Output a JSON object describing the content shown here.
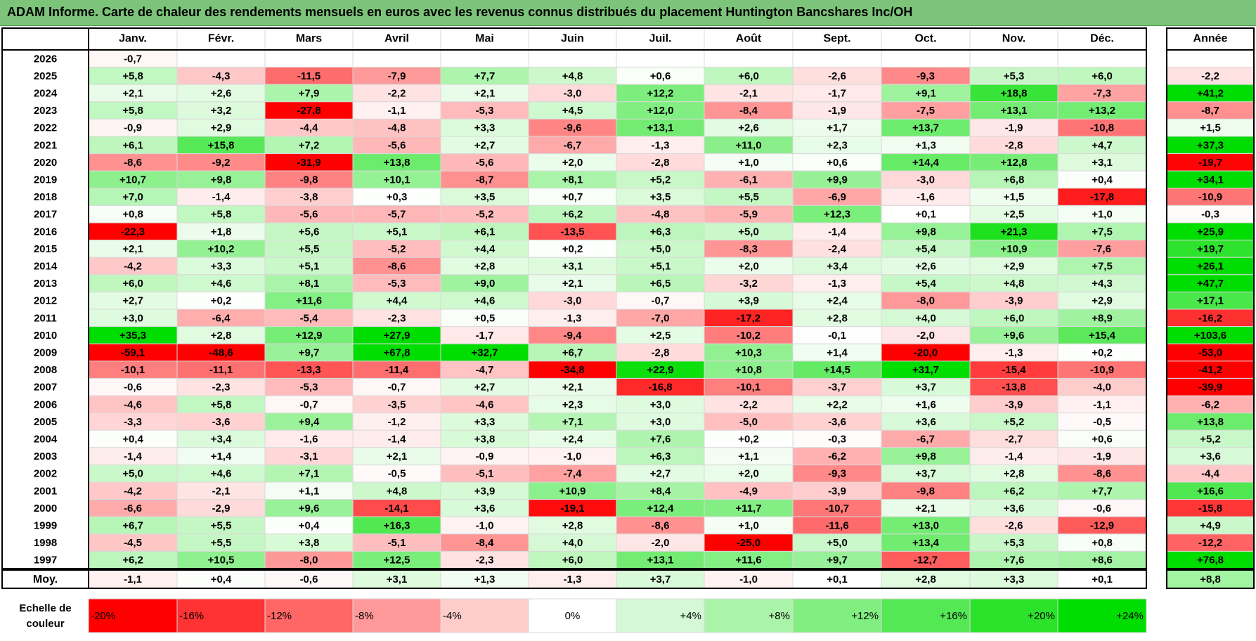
{
  "title": "ADAM Informe. Carte de chaleur des rendements mensuels en euros avec les revenus connus distribués du placement Huntington Bancshares Inc/OH",
  "colors": {
    "title_bg": "#7cc47a",
    "neg_max": "#ff0000",
    "pos_max": "#00dd00",
    "neutral": "#ffffff"
  },
  "chart_data": {
    "type": "heatmap",
    "title": "ADAM Informe. Carte de chaleur des rendements mensuels en euros avec les revenus connus distribués du placement Huntington Bancshares Inc/OH",
    "months": [
      "Janv.",
      "Févr.",
      "Mars",
      "Avril",
      "Mai",
      "Juin",
      "Juil.",
      "Août",
      "Sept.",
      "Oct.",
      "Nov.",
      "Déc."
    ],
    "year_header": "Année",
    "rows": [
      {
        "year": "2026",
        "values": [
          "-0,7",
          "",
          "",
          "",
          "",
          "",
          "",
          "",
          "",
          "",
          "",
          ""
        ],
        "annual": ""
      },
      {
        "year": "2025",
        "values": [
          "+5,8",
          "-4,3",
          "-11,5",
          "-7,9",
          "+7,7",
          "+4,8",
          "+0,6",
          "+6,0",
          "-2,6",
          "-9,3",
          "+5,3",
          "+6,0"
        ],
        "annual": "-2,2"
      },
      {
        "year": "2024",
        "values": [
          "+2,1",
          "+2,6",
          "+7,9",
          "-2,2",
          "+2,1",
          "-3,0",
          "+12,2",
          "-2,1",
          "-1,7",
          "+9,1",
          "+18,8",
          "-7,3"
        ],
        "annual": "+41,2"
      },
      {
        "year": "2023",
        "values": [
          "+5,8",
          "+3,2",
          "-27,8",
          "-1,1",
          "-5,3",
          "+4,5",
          "+12,0",
          "-8,4",
          "-1,9",
          "-7,5",
          "+13,1",
          "+13,2"
        ],
        "annual": "-8,7"
      },
      {
        "year": "2022",
        "values": [
          "-0,9",
          "+2,9",
          "-4,4",
          "-4,8",
          "+3,3",
          "-9,6",
          "+13,1",
          "+2,6",
          "+1,7",
          "+13,7",
          "-1,9",
          "-10,8"
        ],
        "annual": "+1,5"
      },
      {
        "year": "2021",
        "values": [
          "+6,1",
          "+15,8",
          "+7,2",
          "-5,6",
          "+2,7",
          "-6,7",
          "-1,3",
          "+11,0",
          "+2,3",
          "+1,3",
          "-2,8",
          "+4,7"
        ],
        "annual": "+37,3"
      },
      {
        "year": "2020",
        "values": [
          "-8,6",
          "-9,2",
          "-31,9",
          "+13,8",
          "-5,6",
          "+2,0",
          "-2,8",
          "+1,0",
          "+0,6",
          "+14,4",
          "+12,8",
          "+3,1"
        ],
        "annual": "-19,7"
      },
      {
        "year": "2019",
        "values": [
          "+10,7",
          "+9,8",
          "-9,8",
          "+10,1",
          "-8,7",
          "+8,1",
          "+5,2",
          "-6,1",
          "+9,9",
          "-3,0",
          "+6,8",
          "+0,4"
        ],
        "annual": "+34,1"
      },
      {
        "year": "2018",
        "values": [
          "+7,0",
          "-1,4",
          "-3,8",
          "+0,3",
          "+3,5",
          "+0,7",
          "+3,5",
          "+5,5",
          "-6,9",
          "-1,6",
          "+1,5",
          "-17,8"
        ],
        "annual": "-10,9"
      },
      {
        "year": "2017",
        "values": [
          "+0,8",
          "+5,8",
          "-5,6",
          "-5,7",
          "-5,2",
          "+6,2",
          "-4,8",
          "-5,9",
          "+12,3",
          "+0,1",
          "+2,5",
          "+1,0"
        ],
        "annual": "-0,3"
      },
      {
        "year": "2016",
        "values": [
          "-22,3",
          "+1,8",
          "+5,6",
          "+5,1",
          "+6,1",
          "-13,5",
          "+6,3",
          "+5,0",
          "-1,4",
          "+9,8",
          "+21,3",
          "+7,5"
        ],
        "annual": "+25,9"
      },
      {
        "year": "2015",
        "values": [
          "+2,1",
          "+10,2",
          "+5,5",
          "-5,2",
          "+4,4",
          "+0,2",
          "+5,0",
          "-8,3",
          "-2,4",
          "+5,4",
          "+10,9",
          "-7,6"
        ],
        "annual": "+19,7"
      },
      {
        "year": "2014",
        "values": [
          "-4,2",
          "+3,3",
          "+5,1",
          "-8,6",
          "+2,8",
          "+3,1",
          "+5,1",
          "+2,0",
          "+3,4",
          "+2,6",
          "+2,9",
          "+7,5"
        ],
        "annual": "+26,1"
      },
      {
        "year": "2013",
        "values": [
          "+6,0",
          "+4,6",
          "+8,1",
          "-5,3",
          "+9,0",
          "+2,1",
          "+6,5",
          "-3,2",
          "-1,3",
          "+5,4",
          "+4,8",
          "+4,3"
        ],
        "annual": "+47,7"
      },
      {
        "year": "2012",
        "values": [
          "+2,7",
          "+0,2",
          "+11,6",
          "+4,4",
          "+4,6",
          "-3,0",
          "-0,7",
          "+3,9",
          "+2,4",
          "-8,0",
          "-3,9",
          "+2,9"
        ],
        "annual": "+17,1"
      },
      {
        "year": "2011",
        "values": [
          "+3,0",
          "-6,4",
          "-5,4",
          "-2,3",
          "+0,5",
          "-1,3",
          "-7,0",
          "-17,2",
          "+2,8",
          "+4,0",
          "+6,0",
          "+8,9"
        ],
        "annual": "-16,2"
      },
      {
        "year": "2010",
        "values": [
          "+35,3",
          "+2,8",
          "+12,9",
          "+27,9",
          "-1,7",
          "-9,4",
          "+2,5",
          "-10,2",
          "-0,1",
          "-2,0",
          "+9,6",
          "+15,4"
        ],
        "annual": "+103,6"
      },
      {
        "year": "2009",
        "values": [
          "-59,1",
          "-48,6",
          "+9,7",
          "+67,8",
          "+32,7",
          "+6,7",
          "-2,8",
          "+10,3",
          "+1,4",
          "-20,0",
          "-1,3",
          "+0,2"
        ],
        "annual": "-53,0"
      },
      {
        "year": "2008",
        "values": [
          "-10,1",
          "-11,1",
          "-13,3",
          "-11,4",
          "-4,7",
          "-34,8",
          "+22,9",
          "+10,8",
          "+14,5",
          "+31,7",
          "-15,4",
          "-10,9"
        ],
        "annual": "-41,2"
      },
      {
        "year": "2007",
        "values": [
          "-0,6",
          "-2,3",
          "-5,3",
          "-0,7",
          "+2,7",
          "+2,1",
          "-16,8",
          "-10,1",
          "-3,7",
          "+3,7",
          "-13,8",
          "-4,0"
        ],
        "annual": "-39,9"
      },
      {
        "year": "2006",
        "values": [
          "-4,6",
          "+5,8",
          "-0,7",
          "-3,5",
          "-4,6",
          "+2,3",
          "+3,0",
          "-2,2",
          "+2,2",
          "+1,6",
          "-3,9",
          "-1,1"
        ],
        "annual": "-6,2"
      },
      {
        "year": "2005",
        "values": [
          "-3,3",
          "-3,6",
          "+9,4",
          "-1,2",
          "+3,3",
          "+7,1",
          "+3,0",
          "-5,0",
          "-3,6",
          "+3,6",
          "+5,2",
          "-0,5"
        ],
        "annual": "+13,8"
      },
      {
        "year": "2004",
        "values": [
          "+0,4",
          "+3,4",
          "-1,6",
          "-1,4",
          "+3,8",
          "+2,4",
          "+7,6",
          "+0,2",
          "-0,3",
          "-6,7",
          "-2,7",
          "+0,6"
        ],
        "annual": "+5,2"
      },
      {
        "year": "2003",
        "values": [
          "-1,4",
          "+1,4",
          "-3,1",
          "+2,1",
          "-0,9",
          "-1,0",
          "+6,3",
          "+1,1",
          "-6,2",
          "+9,8",
          "-1,4",
          "-1,9"
        ],
        "annual": "+3,6"
      },
      {
        "year": "2002",
        "values": [
          "+5,0",
          "+4,6",
          "+7,1",
          "-0,5",
          "-5,1",
          "-7,4",
          "+2,7",
          "+2,0",
          "-9,3",
          "+3,7",
          "+2,8",
          "-8,6"
        ],
        "annual": "-4,4"
      },
      {
        "year": "2001",
        "values": [
          "-4,2",
          "-2,1",
          "+1,1",
          "+4,8",
          "+3,9",
          "+10,9",
          "+8,4",
          "-4,9",
          "-3,9",
          "-9,8",
          "+6,2",
          "+7,7"
        ],
        "annual": "+16,6"
      },
      {
        "year": "2000",
        "values": [
          "-6,6",
          "-2,9",
          "+9,6",
          "-14,1",
          "+3,6",
          "-19,1",
          "+12,4",
          "+11,7",
          "-10,7",
          "+2,1",
          "+3,6",
          "-0,6"
        ],
        "annual": "-15,8"
      },
      {
        "year": "1999",
        "values": [
          "+6,7",
          "+5,5",
          "+0,4",
          "+16,3",
          "-1,0",
          "+2,8",
          "-8,6",
          "+1,0",
          "-11,6",
          "+13,0",
          "-2,6",
          "-12,9"
        ],
        "annual": "+4,9"
      },
      {
        "year": "1998",
        "values": [
          "-4,5",
          "+5,5",
          "+3,8",
          "-5,1",
          "-8,4",
          "+4,0",
          "-2,0",
          "-25,0",
          "+5,0",
          "+13,4",
          "+5,3",
          "+0,8"
        ],
        "annual": "-12,2"
      },
      {
        "year": "1997",
        "values": [
          "+6,2",
          "+10,5",
          "-8,0",
          "+12,5",
          "-2,3",
          "+6,0",
          "+13,1",
          "+11,6",
          "+9,7",
          "-12,7",
          "+7,6",
          "+8,6"
        ],
        "annual": "+76,8"
      }
    ],
    "average": {
      "label": "Moy.",
      "values": [
        "-1,1",
        "+0,4",
        "-0,6",
        "+3,1",
        "+1,3",
        "-1,3",
        "+3,7",
        "-1,0",
        "+0,1",
        "+2,8",
        "+3,3",
        "+0,1"
      ],
      "annual": "+8,8"
    },
    "scale": {
      "label_line1": "Echelle de",
      "label_line2": "couleur",
      "steps": [
        {
          "label": "-20%",
          "value": -20
        },
        {
          "label": "-16%",
          "value": -16
        },
        {
          "label": "-12%",
          "value": -12
        },
        {
          "label": "-8%",
          "value": -8
        },
        {
          "label": "-4%",
          "value": -4
        },
        {
          "label": "0%",
          "value": 0
        },
        {
          "label": "+4%",
          "value": 4
        },
        {
          "label": "+8%",
          "value": 8
        },
        {
          "label": "+12%",
          "value": 12
        },
        {
          "label": "+16%",
          "value": 16
        },
        {
          "label": "+20%",
          "value": 20
        },
        {
          "label": "+24%",
          "value": 24
        }
      ]
    }
  }
}
